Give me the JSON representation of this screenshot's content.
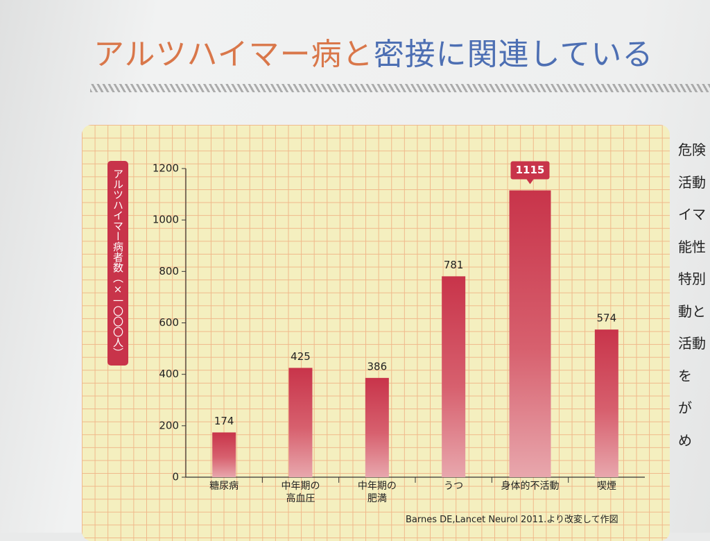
{
  "header": {
    "title_part1": "アルツハイマー病と",
    "title_part2": "密接に関連している"
  },
  "side_text": [
    "危険",
    "活動",
    "イマ",
    "能性",
    "特別",
    "動と",
    "活動",
    "を",
    "が",
    "め"
  ],
  "chart_data": {
    "type": "bar",
    "y_label": "アルツハイマー病者数（×一〇〇〇人）",
    "categories": [
      "糖尿病",
      "中年期の\n高血圧",
      "中年期の\n肥満",
      "うつ",
      "身体的不活動",
      "喫煙"
    ],
    "values": [
      174,
      425,
      386,
      781,
      1115,
      574
    ],
    "color": "#c8344a",
    "ylim": [
      0,
      1200
    ],
    "yticks": [
      0,
      200,
      400,
      600,
      800,
      1000,
      1200
    ],
    "grid": true,
    "source": "Barnes DE,Lancet Neurol 2011.より改変して作図"
  }
}
